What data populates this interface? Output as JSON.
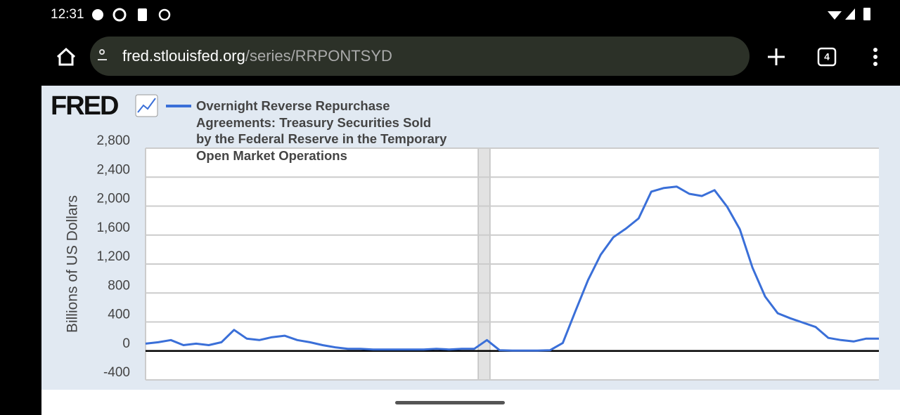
{
  "status_bar": {
    "time": "12:31"
  },
  "browser": {
    "url_host": "fred.stlouisfed.org",
    "url_path": "/series/RRPONTSYD",
    "tab_count": "4"
  },
  "chart_data": {
    "type": "line",
    "logo": "FRED",
    "ylabel": "Billions of US Dollars",
    "series": [
      {
        "name": "Overnight Reverse Repurchase Agreements: Treasury Securities Sold by the Federal Reserve in the Temporary Open Market Operations",
        "color": "#3a6fd8",
        "values": [
          100,
          120,
          150,
          80,
          100,
          80,
          120,
          290,
          170,
          150,
          190,
          210,
          150,
          120,
          80,
          50,
          30,
          30,
          20,
          20,
          20,
          20,
          20,
          30,
          20,
          30,
          30,
          150,
          10,
          5,
          5,
          5,
          10,
          110,
          550,
          980,
          1330,
          1570,
          1690,
          1830,
          2200,
          2250,
          2270,
          2170,
          2140,
          2220,
          1990,
          1680,
          1150,
          750,
          520,
          450,
          390,
          330,
          180,
          150,
          130,
          170,
          170
        ]
      }
    ],
    "ylim": [
      -400,
      2800
    ],
    "yticks": [
      -400,
      0,
      400,
      800,
      {
        "value": 1200,
        "label": "1,200"
      },
      {
        "value": 1600,
        "label": "1,600"
      },
      {
        "value": 2000,
        "label": "2,000"
      },
      {
        "value": 2400,
        "label": "2,400"
      },
      {
        "value": 2800,
        "label": "2,800"
      }
    ],
    "grid": true
  }
}
